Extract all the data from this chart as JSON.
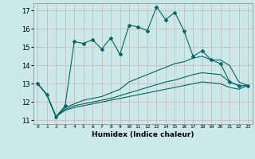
{
  "xlabel": "Humidex (Indice chaleur)",
  "background_color": "#cce9e9",
  "grid_color": "#d4b8b8",
  "line_color": "#006666",
  "xlim": [
    -0.5,
    23.5
  ],
  "ylim": [
    10.8,
    17.4
  ],
  "yticks": [
    11,
    12,
    13,
    14,
    15,
    16,
    17
  ],
  "xticks": [
    0,
    1,
    2,
    3,
    4,
    5,
    6,
    7,
    8,
    9,
    10,
    11,
    12,
    13,
    14,
    15,
    16,
    17,
    18,
    19,
    20,
    21,
    22,
    23
  ],
  "xtick_labels": [
    "0",
    "1",
    "2",
    "3",
    "4",
    "5",
    "6",
    "7",
    "8",
    "9",
    "10",
    "11",
    "12",
    "13",
    "14",
    "15",
    "16",
    "17",
    "18",
    "19",
    "20",
    "21",
    "22",
    "23"
  ],
  "line1_x": [
    0,
    1,
    2,
    3,
    4,
    5,
    6,
    7,
    8,
    9,
    10,
    11,
    12,
    13,
    14,
    15,
    16,
    17,
    18,
    19,
    20,
    21,
    22,
    23
  ],
  "line1_y": [
    13.0,
    12.4,
    11.2,
    11.8,
    15.3,
    15.2,
    15.4,
    14.9,
    15.5,
    14.6,
    16.2,
    16.1,
    15.9,
    17.2,
    16.5,
    16.9,
    15.9,
    14.5,
    14.8,
    14.3,
    14.1,
    13.1,
    12.9,
    12.9
  ],
  "line2_x": [
    0,
    1,
    2,
    3,
    4,
    5,
    6,
    7,
    8,
    9,
    10,
    11,
    12,
    13,
    14,
    15,
    16,
    17,
    18,
    19,
    20,
    21,
    22,
    23
  ],
  "line2_y": [
    13.0,
    12.4,
    11.2,
    11.7,
    11.9,
    12.1,
    12.2,
    12.3,
    12.5,
    12.7,
    13.1,
    13.3,
    13.5,
    13.7,
    13.9,
    14.1,
    14.2,
    14.4,
    14.5,
    14.3,
    14.3,
    14.0,
    13.1,
    12.9
  ],
  "line3_x": [
    0,
    1,
    2,
    3,
    4,
    5,
    6,
    7,
    8,
    9,
    10,
    11,
    12,
    13,
    14,
    15,
    16,
    17,
    18,
    19,
    20,
    21,
    22,
    23
  ],
  "line3_y": [
    13.0,
    12.4,
    11.2,
    11.6,
    11.8,
    11.9,
    12.0,
    12.1,
    12.2,
    12.35,
    12.5,
    12.65,
    12.8,
    12.95,
    13.1,
    13.2,
    13.35,
    13.5,
    13.6,
    13.55,
    13.5,
    13.1,
    12.9,
    12.9
  ],
  "line4_x": [
    0,
    1,
    2,
    3,
    4,
    5,
    6,
    7,
    8,
    9,
    10,
    11,
    12,
    13,
    14,
    15,
    16,
    17,
    18,
    19,
    20,
    21,
    22,
    23
  ],
  "line4_y": [
    13.0,
    12.4,
    11.2,
    11.55,
    11.7,
    11.8,
    11.9,
    12.0,
    12.1,
    12.2,
    12.3,
    12.4,
    12.5,
    12.6,
    12.7,
    12.8,
    12.9,
    13.0,
    13.1,
    13.05,
    13.0,
    12.8,
    12.7,
    12.9
  ]
}
